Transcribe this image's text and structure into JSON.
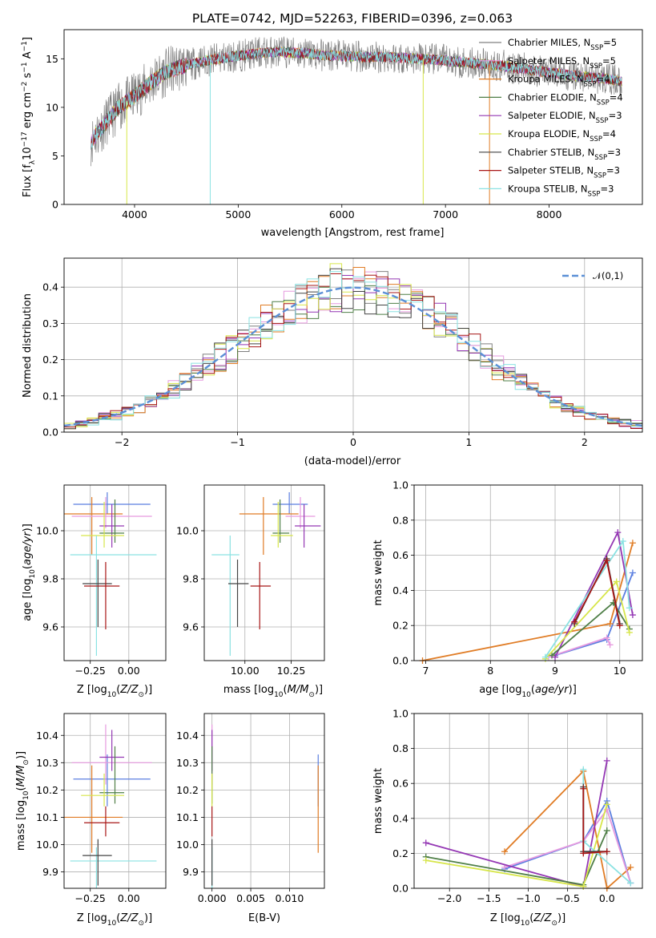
{
  "figure_title": "PLATE=0742, MJD=52263, FIBERID=0396, z=0.063",
  "colors": [
    "#808080",
    "#e69adf",
    "#e07c25",
    "#4f7f47",
    "#9437b4",
    "#d7e64a",
    "#444444",
    "#a81717",
    "#8ae2e2"
  ],
  "chart_data": [
    {
      "id": "spectrum",
      "type": "line",
      "title": "PLATE=0742, MJD=52263, FIBERID=0396, z=0.063",
      "xlabel": "wavelength [Angstrom, rest frame]",
      "ylabel": "Flux [f_λ 10^-17 erg cm^-2 s^-1 A^-1]",
      "xlim": [
        3320,
        8900
      ],
      "ylim": [
        0,
        18
      ],
      "xticks": [
        "4000",
        "5000",
        "6000",
        "7000",
        "8000"
      ],
      "yticks": [
        "0",
        "5",
        "10",
        "15"
      ],
      "legend_position": "right",
      "series": [
        {
          "name": "Chabrier MILES, N_SSP=5",
          "legend_main": "Chabrier MILES, N",
          "legend_sub": "SSP",
          "legend_tail": "=5",
          "color": "#808080"
        },
        {
          "name": "Salpeter MILES, N_SSP=5",
          "legend_main": "Salpeter MILES, N",
          "legend_sub": "SSP",
          "legend_tail": "=5",
          "color": "#e69adf"
        },
        {
          "name": "Kroupa MILES, N_SSP=4",
          "legend_main": "Kroupa MILES, N",
          "legend_sub": "SSP",
          "legend_tail": "=4",
          "color": "#e07c25"
        },
        {
          "name": "Chabrier ELODIE, N_SSP=4",
          "legend_main": "Chabrier ELODIE, N",
          "legend_sub": "SSP",
          "legend_tail": "=4",
          "color": "#4f7f47"
        },
        {
          "name": "Salpeter ELODIE, N_SSP=3",
          "legend_main": "Salpeter ELODIE, N",
          "legend_sub": "SSP",
          "legend_tail": "=3",
          "color": "#9437b4"
        },
        {
          "name": "Kroupa ELODIE, N_SSP=4",
          "legend_main": "Kroupa ELODIE, N",
          "legend_sub": "SSP",
          "legend_tail": "=4",
          "color": "#d7e64a"
        },
        {
          "name": "Chabrier STELIB, N_SSP=3",
          "legend_main": "Chabrier STELIB, N",
          "legend_sub": "SSP",
          "legend_tail": "=3",
          "color": "#444444"
        },
        {
          "name": "Salpeter STELIB, N_SSP=3",
          "legend_main": "Salpeter STELIB, N",
          "legend_sub": "SSP",
          "legend_tail": "=3",
          "color": "#a81717"
        },
        {
          "name": "Kroupa STELIB, N_SSP=3",
          "legend_main": "Kroupa STELIB, N",
          "legend_sub": "SSP",
          "legend_tail": "=3",
          "color": "#8ae2e2"
        }
      ],
      "continuum": {
        "x": [
          3580,
          3650,
          3750,
          3850,
          3950,
          4050,
          4150,
          4300,
          4450,
          4600,
          4800,
          5000,
          5200,
          5400,
          5600,
          5800,
          6000,
          6200,
          6400,
          6600,
          6800,
          7000,
          7200,
          7400,
          7600,
          7800,
          8000,
          8200,
          8500,
          8700
        ],
        "y": [
          6.5,
          7.5,
          8.8,
          10.0,
          10.8,
          11.6,
          12.5,
          13.6,
          14.2,
          14.6,
          15.0,
          15.3,
          15.6,
          15.7,
          15.6,
          15.4,
          15.3,
          15.2,
          15.2,
          15.1,
          15.0,
          14.8,
          14.6,
          14.4,
          14.2,
          13.9,
          13.6,
          13.3,
          13.0,
          12.7
        ]
      },
      "absorption_dips": [
        {
          "x": 3925,
          "to": 0.0,
          "color": "#d7e64a"
        },
        {
          "x": 4730,
          "to": 0.0,
          "color": "#8ae2e2"
        },
        {
          "x": 6785,
          "to": 0.0,
          "color": "#d7e64a"
        },
        {
          "x": 7425,
          "to": 0.0,
          "color": "#e07c25"
        }
      ]
    },
    {
      "id": "residuals",
      "type": "histogram",
      "xlabel": "(data-model)/error",
      "ylabel": "Normed distribution",
      "xlim": [
        -2.5,
        2.5
      ],
      "ylim": [
        0,
        0.48
      ],
      "xticks": [
        "−2",
        "−1",
        "0",
        "1",
        "2"
      ],
      "yticks": [
        "0.0",
        "0.1",
        "0.2",
        "0.3",
        "0.4"
      ],
      "grid": true,
      "legend_position": "top-right",
      "reference_curve": {
        "name": "𝒩(0,1)",
        "color": "#5b8fd6",
        "mean": 0,
        "sigma": 1
      },
      "bin_width": 0.1
    },
    {
      "id": "age-vs-Z",
      "type": "errorbar",
      "xlabel": "Z [log10(Z/Z⊙)]",
      "ylabel": "age [log10(age/yr)]",
      "xlim": [
        -0.42,
        0.24
      ],
      "ylim": [
        9.46,
        10.19
      ],
      "xticks": [
        "−0.25",
        "0.00"
      ],
      "yticks": [
        "9.6",
        "9.8",
        "10.0"
      ],
      "grid": true,
      "points": [
        {
          "x": -0.14,
          "xerr": [
            0.22,
            0.28
          ],
          "y": 10.11,
          "yerr": [
            0.04,
            0.05
          ],
          "color": "#5b7fe0"
        },
        {
          "x": -0.24,
          "xerr": [
            0.28,
            0.2
          ],
          "y": 10.07,
          "yerr": [
            0.17,
            0.07
          ],
          "color": "#e07c25"
        },
        {
          "x": -0.15,
          "xerr": [
            0.22,
            0.3
          ],
          "y": 10.06,
          "yerr": [
            0.05,
            0.08
          ],
          "color": "#e69adf"
        },
        {
          "x": -0.11,
          "xerr": [
            0.08,
            0.08
          ],
          "y": 10.02,
          "yerr": [
            0.09,
            0.09
          ],
          "color": "#9437b4"
        },
        {
          "x": -0.09,
          "xerr": [
            0.1,
            0.06
          ],
          "y": 9.99,
          "yerr": [
            0.04,
            0.14
          ],
          "color": "#4f7f47"
        },
        {
          "x": -0.16,
          "xerr": [
            0.15,
            0.13
          ],
          "y": 9.98,
          "yerr": [
            0.05,
            0.14
          ],
          "color": "#d7e64a"
        },
        {
          "x": -0.21,
          "xerr": [
            0.17,
            0.39
          ],
          "y": 9.9,
          "yerr": [
            0.42,
            0.08
          ],
          "color": "#8ae2e2"
        },
        {
          "x": -0.2,
          "xerr": [
            0.1,
            0.09
          ],
          "y": 9.78,
          "yerr": [
            0.18,
            0.1
          ],
          "color": "#444444"
        },
        {
          "x": -0.15,
          "xerr": [
            0.14,
            0.09
          ],
          "y": 9.77,
          "yerr": [
            0.18,
            0.1
          ],
          "color": "#a81717"
        }
      ]
    },
    {
      "id": "age-vs-mass",
      "type": "errorbar",
      "xlabel": "mass [log10(M/M⊙)]",
      "ylabel": "",
      "xlim": [
        9.78,
        10.43
      ],
      "ylim": [
        9.46,
        10.19
      ],
      "xticks": [
        "10.00",
        "10.25"
      ],
      "yticks": [
        "9.6",
        "9.8",
        "10.0"
      ],
      "grid": true,
      "points": [
        {
          "x": 10.24,
          "xerr": [
            0.09,
            0.1
          ],
          "y": 10.11,
          "yerr": [
            0.04,
            0.05
          ],
          "color": "#5b7fe0"
        },
        {
          "x": 10.1,
          "xerr": [
            0.13,
            0.19
          ],
          "y": 10.07,
          "yerr": [
            0.17,
            0.07
          ],
          "color": "#e07c25"
        },
        {
          "x": 10.3,
          "xerr": [
            0.08,
            0.08
          ],
          "y": 10.06,
          "yerr": [
            0.05,
            0.08
          ],
          "color": "#e69adf"
        },
        {
          "x": 10.32,
          "xerr": [
            0.05,
            0.09
          ],
          "y": 10.02,
          "yerr": [
            0.09,
            0.09
          ],
          "color": "#9437b4"
        },
        {
          "x": 10.19,
          "xerr": [
            0.04,
            0.05
          ],
          "y": 9.99,
          "yerr": [
            0.04,
            0.14
          ],
          "color": "#4f7f47"
        },
        {
          "x": 10.18,
          "xerr": [
            0.04,
            0.08
          ],
          "y": 9.98,
          "yerr": [
            0.05,
            0.14
          ],
          "color": "#d7e64a"
        },
        {
          "x": 9.92,
          "xerr": [
            0.1,
            0.05
          ],
          "y": 9.9,
          "yerr": [
            0.42,
            0.08
          ],
          "color": "#8ae2e2"
        },
        {
          "x": 9.96,
          "xerr": [
            0.05,
            0.06
          ],
          "y": 9.78,
          "yerr": [
            0.18,
            0.1
          ],
          "color": "#444444"
        },
        {
          "x": 10.08,
          "xerr": [
            0.05,
            0.06
          ],
          "y": 9.77,
          "yerr": [
            0.18,
            0.1
          ],
          "color": "#a81717"
        }
      ]
    },
    {
      "id": "mass-weight-vs-age",
      "type": "line",
      "xlabel": "age [log10(age/yr)]",
      "ylabel": "mass weight",
      "xlim": [
        6.82,
        10.35
      ],
      "ylim": [
        0,
        1.0
      ],
      "xticks": [
        "7",
        "8",
        "9",
        "10"
      ],
      "yticks": [
        "0.0",
        "0.2",
        "0.4",
        "0.6",
        "0.8",
        "1.0"
      ],
      "grid": true,
      "series": [
        {
          "color": "#5b7fe0",
          "x": [
            9.0,
            9.8,
            10.2
          ],
          "y": [
            0.03,
            0.12,
            0.5
          ]
        },
        {
          "color": "#e07c25",
          "x": [
            6.95,
            9.85,
            10.2
          ],
          "y": [
            0.0,
            0.21,
            0.67
          ]
        },
        {
          "color": "#e69adf",
          "x": [
            8.9,
            9.8,
            9.85
          ],
          "y": [
            0.02,
            0.13,
            0.09
          ]
        },
        {
          "color": "#9437b4",
          "x": [
            9.0,
            9.97,
            10.2
          ],
          "y": [
            0.02,
            0.73,
            0.26
          ]
        },
        {
          "color": "#4f7f47",
          "x": [
            8.95,
            9.9,
            10.15
          ],
          "y": [
            0.03,
            0.33,
            0.18
          ]
        },
        {
          "color": "#d7e64a",
          "x": [
            8.85,
            9.95,
            10.15
          ],
          "y": [
            0.01,
            0.45,
            0.16
          ]
        },
        {
          "color": "#8ae2e2",
          "x": [
            8.85,
            10.05,
            10.15
          ],
          "y": [
            0.02,
            0.68,
            0.3
          ]
        },
        {
          "color": "#444444",
          "x": [
            9.3,
            9.8,
            10.0
          ],
          "y": [
            0.21,
            0.58,
            0.21
          ]
        },
        {
          "color": "#a81717",
          "x": [
            9.3,
            9.8,
            10.0
          ],
          "y": [
            0.22,
            0.57,
            0.2
          ]
        }
      ]
    },
    {
      "id": "mass-vs-Z",
      "type": "errorbar",
      "xlabel": "Z [log10(Z/Z⊙)]",
      "ylabel": "mass [log10(M/M⊙)]",
      "xlim": [
        -0.42,
        0.24
      ],
      "ylim": [
        9.84,
        10.48
      ],
      "xticks": [
        "−0.25",
        "0.00"
      ],
      "yticks": [
        "9.9",
        "10.0",
        "10.1",
        "10.2",
        "10.3",
        "10.4"
      ],
      "grid": true,
      "points": [
        {
          "x": -0.14,
          "xerr": [
            0.22,
            0.28
          ],
          "y": 10.24,
          "yerr": [
            0.1,
            0.09
          ],
          "color": "#5b7fe0"
        },
        {
          "x": -0.24,
          "xerr": [
            0.28,
            0.2
          ],
          "y": 10.1,
          "yerr": [
            0.13,
            0.19
          ],
          "color": "#e07c25"
        },
        {
          "x": -0.15,
          "xerr": [
            0.22,
            0.3
          ],
          "y": 10.3,
          "yerr": [
            0.08,
            0.14
          ],
          "color": "#e69adf"
        },
        {
          "x": -0.11,
          "xerr": [
            0.08,
            0.08
          ],
          "y": 10.32,
          "yerr": [
            0.05,
            0.1
          ],
          "color": "#9437b4"
        },
        {
          "x": -0.09,
          "xerr": [
            0.1,
            0.06
          ],
          "y": 10.19,
          "yerr": [
            0.04,
            0.17
          ],
          "color": "#4f7f47"
        },
        {
          "x": -0.16,
          "xerr": [
            0.15,
            0.13
          ],
          "y": 10.18,
          "yerr": [
            0.04,
            0.08
          ],
          "color": "#d7e64a"
        },
        {
          "x": -0.21,
          "xerr": [
            0.17,
            0.39
          ],
          "y": 9.94,
          "yerr": [
            0.1,
            0.05
          ],
          "color": "#8ae2e2"
        },
        {
          "x": -0.2,
          "xerr": [
            0.1,
            0.09
          ],
          "y": 9.96,
          "yerr": [
            0.11,
            0.06
          ],
          "color": "#444444"
        },
        {
          "x": -0.15,
          "xerr": [
            0.14,
            0.09
          ],
          "y": 10.08,
          "yerr": [
            0.05,
            0.06
          ],
          "color": "#a81717"
        }
      ]
    },
    {
      "id": "mass-vs-EBV",
      "type": "errorbar",
      "xlabel": "E(B-V)",
      "ylabel": "",
      "xlim": [
        -0.001,
        0.0145
      ],
      "ylim": [
        9.84,
        10.48
      ],
      "xticks": [
        "0.000",
        "0.005",
        "0.010"
      ],
      "yticks": [
        "9.9",
        "10.0",
        "10.1",
        "10.2",
        "10.3",
        "10.4"
      ],
      "grid": true,
      "points": [
        {
          "x": 0.0,
          "y": 10.3,
          "yerr": [
            0.08,
            0.14
          ],
          "color": "#e69adf"
        },
        {
          "x": 0.0,
          "y": 10.32,
          "yerr": [
            0.05,
            0.1
          ],
          "color": "#9437b4"
        },
        {
          "x": 0.0,
          "y": 10.19,
          "yerr": [
            0.04,
            0.17
          ],
          "color": "#4f7f47"
        },
        {
          "x": 0.0,
          "y": 10.18,
          "yerr": [
            0.04,
            0.08
          ],
          "color": "#d7e64a"
        },
        {
          "x": 0.0,
          "y": 9.94,
          "yerr": [
            0.1,
            0.05
          ],
          "color": "#8ae2e2"
        },
        {
          "x": 0.0,
          "y": 9.96,
          "yerr": [
            0.11,
            0.06
          ],
          "color": "#444444"
        },
        {
          "x": 0.0,
          "y": 10.08,
          "yerr": [
            0.05,
            0.06
          ],
          "color": "#a81717"
        },
        {
          "x": 0.0137,
          "y": 10.24,
          "yerr": [
            0.1,
            0.09
          ],
          "color": "#5b7fe0"
        },
        {
          "x": 0.0137,
          "y": 10.1,
          "yerr": [
            0.13,
            0.19
          ],
          "color": "#e07c25"
        }
      ]
    },
    {
      "id": "mass-weight-vs-Z",
      "type": "line",
      "xlabel": "Z [log10(Z/Z⊙)]",
      "ylabel": "mass weight",
      "xlim": [
        -2.45,
        0.45
      ],
      "ylim": [
        0,
        1.0
      ],
      "xticks": [
        "−2.0",
        "−1.5",
        "−1.0",
        "−0.5",
        "0.0"
      ],
      "yticks": [
        "0.0",
        "0.2",
        "0.4",
        "0.6",
        "0.8",
        "1.0"
      ],
      "grid": true,
      "series": [
        {
          "color": "#5b7fe0",
          "x": [
            -1.3,
            -0.3,
            0.0,
            0.3
          ],
          "y": [
            0.11,
            0.27,
            0.5,
            0.03
          ]
        },
        {
          "color": "#e07c25",
          "x": [
            -1.3,
            -0.3,
            0.0,
            0.3
          ],
          "y": [
            0.21,
            0.67,
            0.0,
            0.12
          ]
        },
        {
          "color": "#e69adf",
          "x": [
            -1.3,
            -0.3,
            0.0,
            0.3
          ],
          "y": [
            0.12,
            0.27,
            0.45,
            0.03
          ]
        },
        {
          "color": "#9437b4",
          "x": [
            -2.3,
            -0.3,
            0.0
          ],
          "y": [
            0.26,
            0.01,
            0.73
          ]
        },
        {
          "color": "#4f7f47",
          "x": [
            -2.3,
            -0.3,
            0.0
          ],
          "y": [
            0.18,
            0.02,
            0.33
          ]
        },
        {
          "color": "#d7e64a",
          "x": [
            -2.3,
            -0.3,
            0.0
          ],
          "y": [
            0.16,
            0.01,
            0.48
          ]
        },
        {
          "color": "#8ae2e2",
          "x": [
            -0.3,
            -0.3,
            0.3
          ],
          "y": [
            0.68,
            0.27,
            0.03
          ]
        },
        {
          "color": "#444444",
          "x": [
            -0.3,
            -0.3,
            0.0
          ],
          "y": [
            0.58,
            0.21,
            0.21
          ]
        },
        {
          "color": "#a81717",
          "x": [
            -0.3,
            -0.3,
            0.0
          ],
          "y": [
            0.57,
            0.2,
            0.21
          ]
        }
      ]
    }
  ]
}
